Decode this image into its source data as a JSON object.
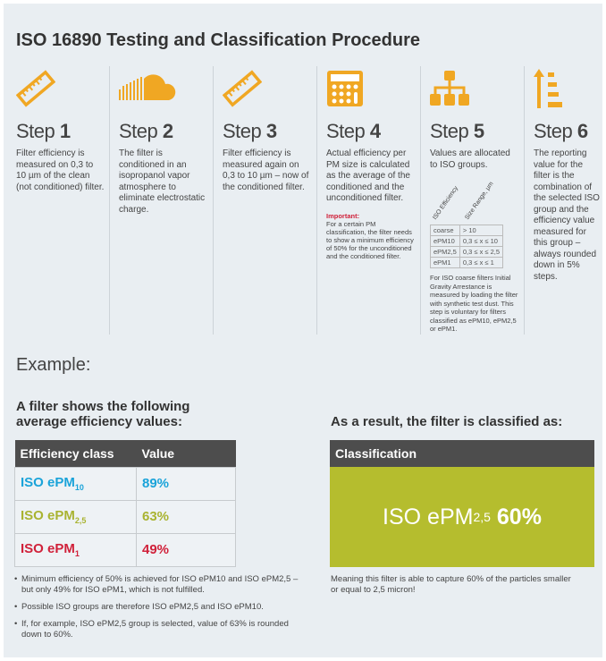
{
  "title": "ISO 16890 Testing and Classification Procedure",
  "accent": "#f0a723",
  "steps": [
    {
      "word": "Step",
      "num": "1",
      "icon": "ruler-icon",
      "text": "Filter efficiency is measured on 0,3 to 10 µm of the clean (not conditioned) filter."
    },
    {
      "word": "Step",
      "num": "2",
      "icon": "cloud-icon",
      "text": "The filter is conditioned in an isopropanol vapor atmosphere to eliminate electrostatic charge."
    },
    {
      "word": "Step",
      "num": "3",
      "icon": "ruler-icon",
      "text": "Filter efficiency is measured again on 0,3 to 10 µm – now of the conditioned filter."
    },
    {
      "word": "Step",
      "num": "4",
      "icon": "calculator-icon",
      "text": "Actual efficiency per PM size is calculated as the average of the conditioned and the unconditioned filter.",
      "important_label": "Important:",
      "important_text": "For a certain PM classification, the filter needs to show a minimum efficiency of 50% for the unconditioned and the conditioned filter."
    },
    {
      "word": "Step",
      "num": "5",
      "icon": "hierarchy-icon",
      "text": "Values are allocated to ISO groups.",
      "table_headers": [
        "ISO Efficiency",
        "Size Range, µm"
      ],
      "table_rows": [
        [
          "coarse",
          "> 10"
        ],
        [
          "ePM10",
          "0,3 ≤ x ≤ 10"
        ],
        [
          "ePM2,5",
          "0,3 ≤ x ≤ 2,5"
        ],
        [
          "ePM1",
          "0,3 ≤ x ≤ 1"
        ]
      ],
      "note": "For ISO coarse filters Initial Gravity Arrestance is measured by loading the filter with synthetic test dust. This step is voluntary for filters classified as ePM10, ePM2,5 or ePM1."
    },
    {
      "word": "Step",
      "num": "6",
      "icon": "sort-ascending-icon",
      "text": "The reporting value for the filter is the combination of the selected ISO group and the efficiency value measured for this group – always rounded down in 5% steps."
    }
  ],
  "example": {
    "heading": "Example:",
    "shows": "A filter shows the following average efficiency values:",
    "result_heading": "As a result, the filter is classified as:",
    "table": {
      "headers": [
        "Efficiency class",
        "Value"
      ],
      "rows": [
        {
          "prefix": "ISO ePM",
          "sub": "10",
          "value": "89%",
          "color": "#1aa3d9"
        },
        {
          "prefix": "ISO ePM",
          "sub": "2,5",
          "value": "63%",
          "color": "#a9b331"
        },
        {
          "prefix": "ISO ePM",
          "sub": "1",
          "value": "49%",
          "color": "#d0213a"
        }
      ]
    },
    "classification": {
      "header": "Classification",
      "prefix": "ISO ePM",
      "sub": "2,5",
      "value": "60%",
      "color": "#b5bd2e"
    },
    "bullets": [
      "Minimum efficiency of 50% is achieved for ISO ePM10 and ISO ePM2,5 – but only 49% for ISO ePM1, which is not fulfilled.",
      "Possible ISO groups are therefore ISO ePM2,5 and ISO ePM10.",
      "If, for example, ISO ePM2,5 group is selected, value of 63% is rounded down to 60%."
    ],
    "meaning": "Meaning this filter is able to capture 60% of the particles smaller or equal to 2,5 micron!"
  }
}
